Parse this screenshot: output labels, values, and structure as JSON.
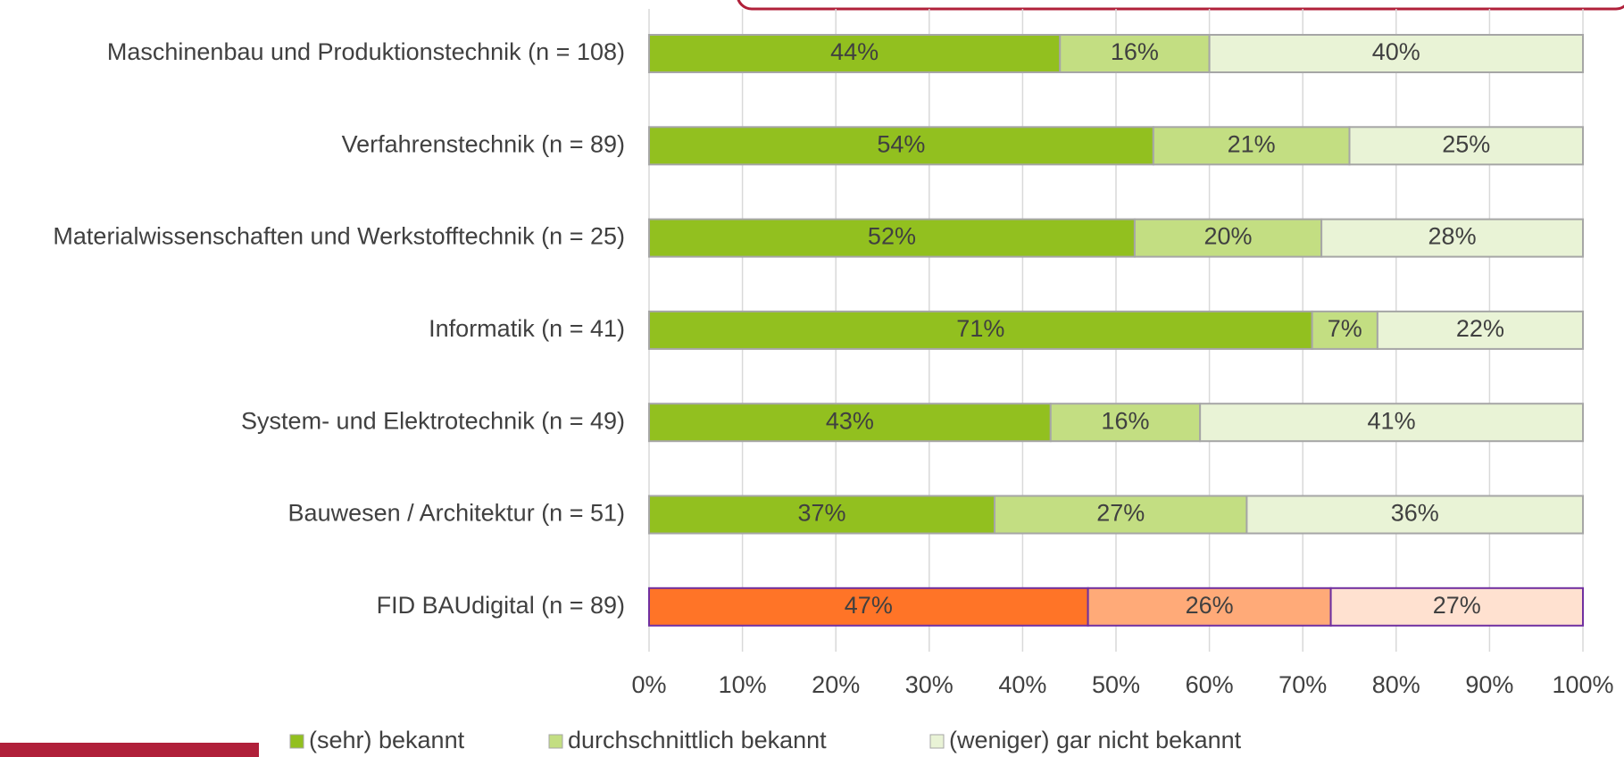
{
  "chart_data": {
    "type": "stacked_barh",
    "categories": [
      "Maschinenbau und Produktionstechnik (n = 108)",
      "Verfahrenstechnik (n = 89)",
      "Materialwissenschaften und Werkstofftechnik (n = 25)",
      "Informatik (n = 41)",
      "System- und Elektrotechnik (n = 49)",
      "Bauwesen / Architektur  (n = 51)",
      "FID BAUdigital (n = 89)"
    ],
    "series": [
      {
        "name": "(sehr) bekannt",
        "color": "#92c01f",
        "colors": [
          "#92c01f",
          "#92c01f",
          "#92c01f",
          "#92c01f",
          "#92c01f",
          "#92c01f",
          "#ff7427"
        ],
        "values": [
          44,
          54,
          52,
          71,
          43,
          37,
          47
        ],
        "value_labels": [
          "44%",
          "54%",
          "52%",
          "71%",
          "43%",
          "37%",
          "47%"
        ]
      },
      {
        "name": "durchschnittlich bekannt",
        "color": "#c3de82",
        "colors": [
          "#c3de82",
          "#c3de82",
          "#c3de82",
          "#c3de82",
          "#c3de82",
          "#c3de82",
          "#ffaa78"
        ],
        "values": [
          16,
          21,
          20,
          7,
          16,
          27,
          26
        ],
        "value_labels": [
          "16%",
          "21%",
          "20%",
          "7%",
          "16%",
          "27%",
          "26%"
        ]
      },
      {
        "name": "(weniger) gar nicht bekannt",
        "color": "#e9f3d6",
        "colors": [
          "#e9f3d6",
          "#e9f3d6",
          "#e9f3d6",
          "#e9f3d6",
          "#e9f3d6",
          "#e9f3d6",
          "#ffe1d0"
        ],
        "values": [
          40,
          25,
          28,
          22,
          41,
          36,
          27
        ],
        "value_labels": [
          "40%",
          "25%",
          "28%",
          "22%",
          "41%",
          "36%",
          "27%"
        ]
      }
    ],
    "edgecolors": [
      "#a6a6a6",
      "#a6a6a6",
      "#a6a6a6",
      "#a6a6a6",
      "#a6a6a6",
      "#a6a6a6",
      "#7030a0"
    ],
    "xlim": [
      0,
      100
    ],
    "xticks": [
      {
        "value": 0,
        "label": "0%"
      },
      {
        "value": 10,
        "label": "10%"
      },
      {
        "value": 20,
        "label": "20%"
      },
      {
        "value": 30,
        "label": "30%"
      },
      {
        "value": 40,
        "label": "40%"
      },
      {
        "value": 50,
        "label": "50%"
      },
      {
        "value": 60,
        "label": "60%"
      },
      {
        "value": 70,
        "label": "70%"
      },
      {
        "value": 80,
        "label": "80%"
      },
      {
        "value": 90,
        "label": "90%"
      },
      {
        "value": 100,
        "label": "100%"
      }
    ],
    "grid": true,
    "legend": "bottom"
  }
}
